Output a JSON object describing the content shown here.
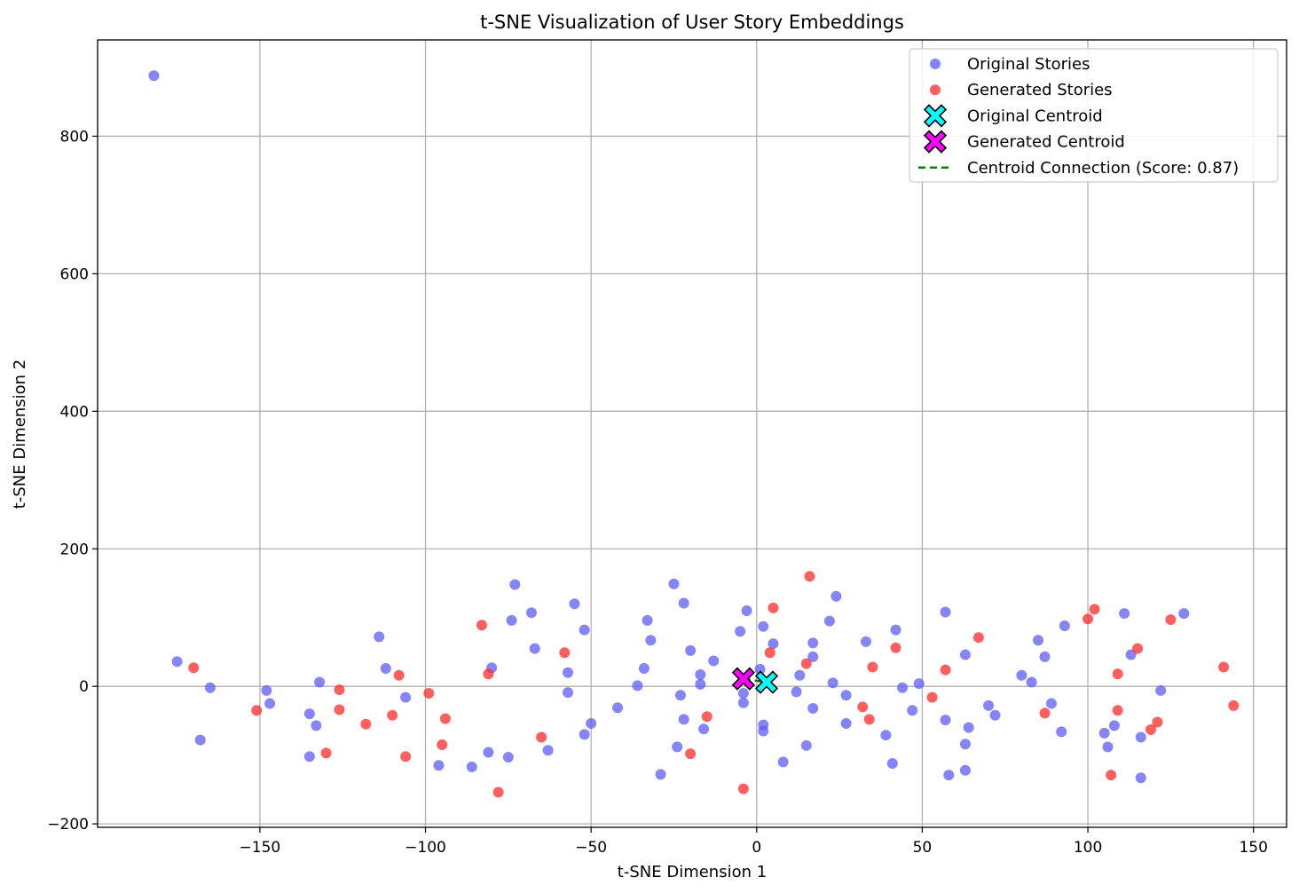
{
  "chart_data": {
    "type": "scatter",
    "title": "t-SNE Visualization of User Story Embeddings",
    "xlabel": "t-SNE Dimension 1",
    "ylabel": "t-SNE Dimension 2",
    "xlim": [
      -199,
      160
    ],
    "ylim": [
      -205,
      940
    ],
    "xticks": [
      -150,
      -100,
      -50,
      0,
      50,
      100,
      150
    ],
    "yticks": [
      -200,
      0,
      200,
      400,
      600,
      800
    ],
    "xtick_labels": [
      "−150",
      "−100",
      "−50",
      "0",
      "50",
      "100",
      "150"
    ],
    "ytick_labels": [
      "−200",
      "0",
      "200",
      "400",
      "600",
      "800"
    ],
    "grid": true,
    "legend_position": "top-right",
    "colors": {
      "original": "#5c5cf5",
      "generated": "#ff2a2a",
      "original_centroid": "#00ffff",
      "generated_centroid": "#ff00ff",
      "connection": "#008000"
    },
    "series": [
      {
        "name": "Original Stories",
        "marker": "circle",
        "points": [
          [
            -182,
            888
          ],
          [
            -175,
            36
          ],
          [
            -168,
            -78
          ],
          [
            -165,
            -2
          ],
          [
            -148,
            -6
          ],
          [
            -147,
            -25
          ],
          [
            -135,
            -40
          ],
          [
            -135,
            -102
          ],
          [
            -133,
            -57
          ],
          [
            -132,
            6
          ],
          [
            -114,
            72
          ],
          [
            -112,
            26
          ],
          [
            -106,
            -16
          ],
          [
            -96,
            -115
          ],
          [
            -86,
            -117
          ],
          [
            -81,
            -96
          ],
          [
            -80,
            27
          ],
          [
            -75,
            -103
          ],
          [
            -74,
            96
          ],
          [
            -73,
            148
          ],
          [
            -68,
            107
          ],
          [
            -67,
            55
          ],
          [
            -63,
            -93
          ],
          [
            -57,
            -9
          ],
          [
            -57,
            20
          ],
          [
            -55,
            120
          ],
          [
            -52,
            82
          ],
          [
            -52,
            -70
          ],
          [
            -50,
            -54
          ],
          [
            -42,
            -31
          ],
          [
            -36,
            1
          ],
          [
            -34,
            26
          ],
          [
            -33,
            96
          ],
          [
            -32,
            67
          ],
          [
            -29,
            -128
          ],
          [
            -25,
            149
          ],
          [
            -24,
            -88
          ],
          [
            -23,
            -13
          ],
          [
            -22,
            -48
          ],
          [
            -22,
            121
          ],
          [
            -20,
            52
          ],
          [
            -17,
            3
          ],
          [
            -17,
            17
          ],
          [
            -16,
            -62
          ],
          [
            -13,
            37
          ],
          [
            -5,
            80
          ],
          [
            -4,
            -24
          ],
          [
            -4,
            -10
          ],
          [
            -3,
            110
          ],
          [
            1,
            25
          ],
          [
            2,
            -56
          ],
          [
            2,
            -65
          ],
          [
            2,
            87
          ],
          [
            5,
            62
          ],
          [
            8,
            -110
          ],
          [
            12,
            -8
          ],
          [
            13,
            16
          ],
          [
            15,
            -86
          ],
          [
            17,
            63
          ],
          [
            17,
            43
          ],
          [
            17,
            -32
          ],
          [
            22,
            95
          ],
          [
            23,
            5
          ],
          [
            24,
            131
          ],
          [
            27,
            -13
          ],
          [
            27,
            -54
          ],
          [
            33,
            65
          ],
          [
            39,
            -71
          ],
          [
            41,
            -112
          ],
          [
            42,
            82
          ],
          [
            44,
            -2
          ],
          [
            47,
            -35
          ],
          [
            49,
            4
          ],
          [
            57,
            -49
          ],
          [
            57,
            108
          ],
          [
            58,
            -129
          ],
          [
            63,
            46
          ],
          [
            63,
            -122
          ],
          [
            63,
            -84
          ],
          [
            64,
            -60
          ],
          [
            70,
            -28
          ],
          [
            72,
            -42
          ],
          [
            80,
            16
          ],
          [
            83,
            6
          ],
          [
            85,
            67
          ],
          [
            87,
            43
          ],
          [
            89,
            -25
          ],
          [
            92,
            -66
          ],
          [
            93,
            88
          ],
          [
            105,
            -68
          ],
          [
            106,
            -88
          ],
          [
            108,
            -57
          ],
          [
            111,
            106
          ],
          [
            113,
            46
          ],
          [
            116,
            -74
          ],
          [
            116,
            -133
          ],
          [
            122,
            -6
          ],
          [
            129,
            106
          ]
        ]
      },
      {
        "name": "Generated Stories",
        "marker": "circle",
        "points": [
          [
            -170,
            27
          ],
          [
            -151,
            -35
          ],
          [
            -130,
            -97
          ],
          [
            -126,
            -5
          ],
          [
            -126,
            -34
          ],
          [
            -118,
            -55
          ],
          [
            -110,
            -42
          ],
          [
            -108,
            16
          ],
          [
            -106,
            -102
          ],
          [
            -99,
            -10
          ],
          [
            -95,
            -85
          ],
          [
            -94,
            -47
          ],
          [
            -83,
            89
          ],
          [
            -81,
            18
          ],
          [
            -78,
            -154
          ],
          [
            -65,
            -74
          ],
          [
            -58,
            49
          ],
          [
            -20,
            -98
          ],
          [
            -15,
            -44
          ],
          [
            -4,
            -149
          ],
          [
            4,
            49
          ],
          [
            5,
            114
          ],
          [
            15,
            33
          ],
          [
            16,
            160
          ],
          [
            32,
            -30
          ],
          [
            34,
            -48
          ],
          [
            35,
            28
          ],
          [
            42,
            56
          ],
          [
            53,
            -16
          ],
          [
            57,
            24
          ],
          [
            67,
            71
          ],
          [
            87,
            -39
          ],
          [
            100,
            98
          ],
          [
            102,
            112
          ],
          [
            107,
            -129
          ],
          [
            109,
            18
          ],
          [
            109,
            -35
          ],
          [
            115,
            55
          ],
          [
            119,
            -63
          ],
          [
            121,
            -52
          ],
          [
            125,
            97
          ],
          [
            141,
            28
          ],
          [
            144,
            -28
          ]
        ]
      },
      {
        "name": "Original Centroid",
        "marker": "X",
        "points": [
          [
            3,
            6
          ]
        ]
      },
      {
        "name": "Generated Centroid",
        "marker": "X",
        "points": [
          [
            -4,
            11
          ]
        ]
      }
    ],
    "connection": {
      "name": "Centroid Connection (Score: 0.87)",
      "style": "dashed",
      "from": [
        -4,
        11
      ],
      "to": [
        3,
        6
      ]
    }
  }
}
